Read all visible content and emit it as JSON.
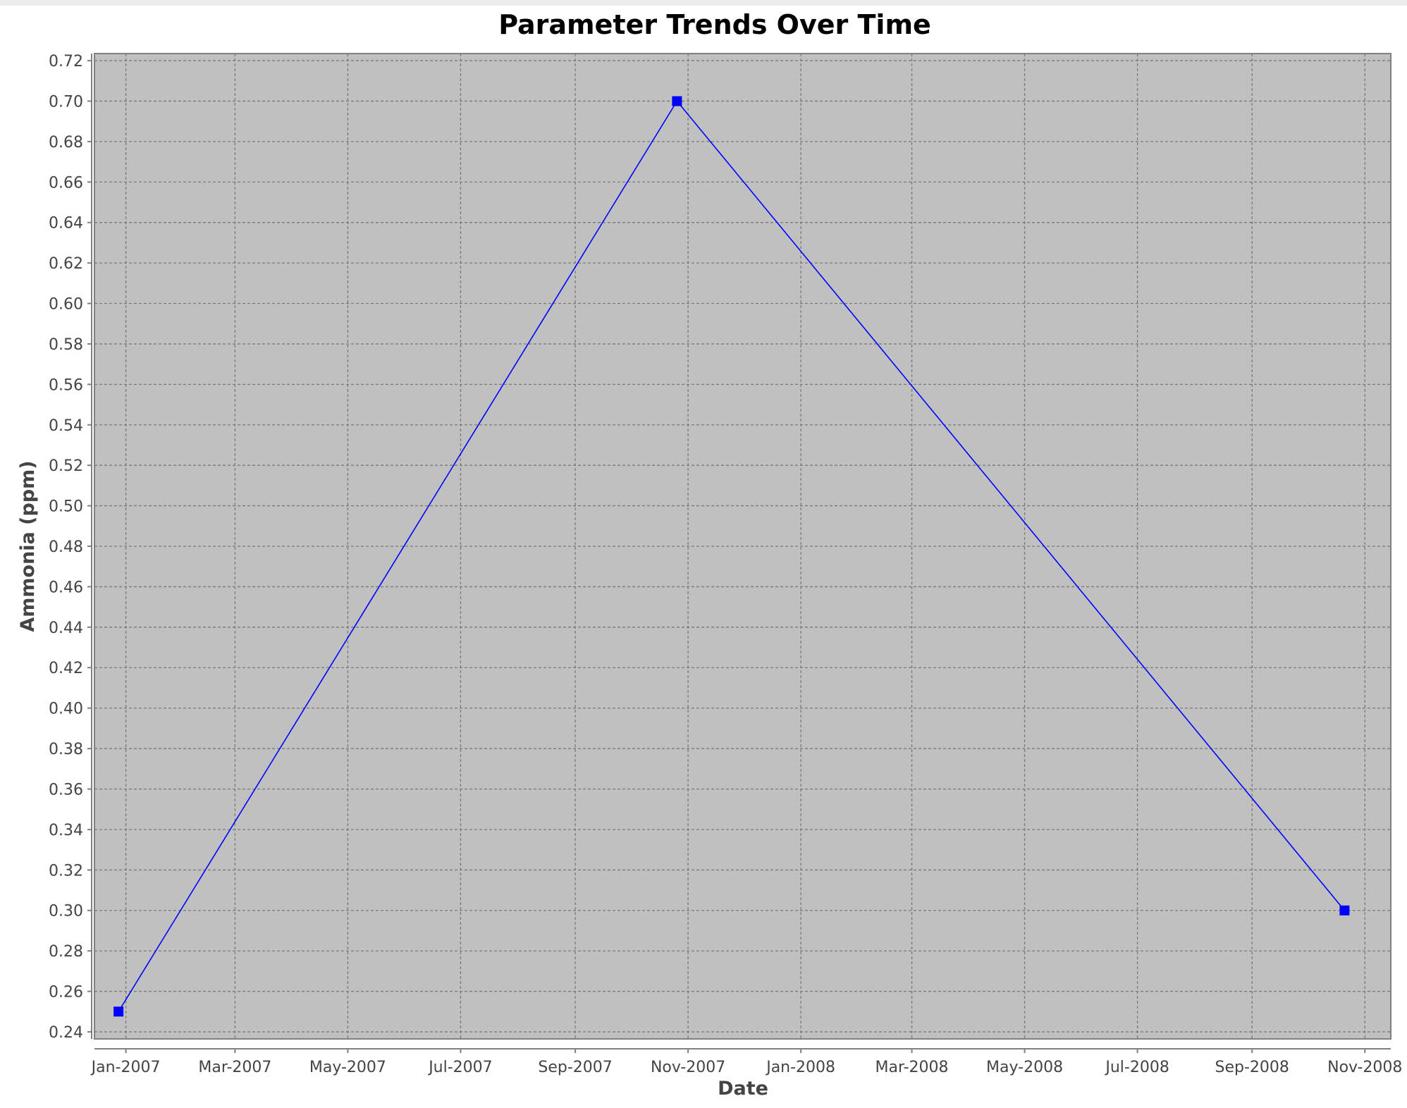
{
  "chart_data": {
    "type": "line",
    "title": "Parameter Trends Over Time",
    "xlabel": "Date",
    "ylabel": "Ammonia (ppm)",
    "x_ticks": [
      "Jan-2007",
      "Mar-2007",
      "May-2007",
      "Jul-2007",
      "Sep-2007",
      "Nov-2007",
      "Jan-2008",
      "Mar-2008",
      "May-2008",
      "Jul-2008",
      "Sep-2008",
      "Nov-2008"
    ],
    "x_tick_dates": [
      "2007-01-01",
      "2007-03-01",
      "2007-05-01",
      "2007-07-01",
      "2007-09-01",
      "2007-11-01",
      "2008-01-01",
      "2008-03-01",
      "2008-05-01",
      "2008-07-01",
      "2008-09-01",
      "2008-11-01"
    ],
    "y_ticks": [
      "0.24",
      "0.26",
      "0.28",
      "0.30",
      "0.32",
      "0.34",
      "0.36",
      "0.38",
      "0.40",
      "0.42",
      "0.44",
      "0.46",
      "0.48",
      "0.50",
      "0.52",
      "0.54",
      "0.56",
      "0.58",
      "0.60",
      "0.62",
      "0.64",
      "0.66",
      "0.68",
      "0.70",
      "0.72"
    ],
    "xlim": [
      "2006-12-15",
      "2008-11-15"
    ],
    "ylim": [
      0.2365,
      0.7235
    ],
    "grid": true,
    "series": [
      {
        "color": "#0000ff",
        "x": [
          "2006-12-28",
          "2007-10-26",
          "2008-10-21"
        ],
        "y": [
          0.25,
          0.7,
          0.3
        ]
      }
    ],
    "colors": {
      "plot_background": "#c0c0c0",
      "grid": "#7a7a7a"
    }
  }
}
